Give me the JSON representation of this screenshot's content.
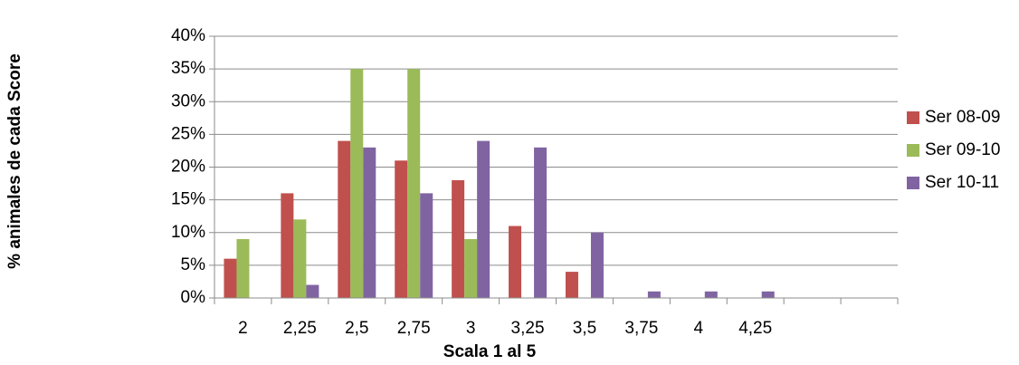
{
  "chart_data": {
    "type": "bar",
    "title": "",
    "xlabel": "Scala 1 al 5",
    "ylabel": "% animales de cada Score",
    "categories": [
      "2",
      "2,25",
      "2,5",
      "2,75",
      "3",
      "3,25",
      "3,5",
      "3,75",
      "4",
      "4,25",
      "",
      ""
    ],
    "y_ticks": [
      "0%",
      "5%",
      "10%",
      "15%",
      "20%",
      "25%",
      "30%",
      "35%",
      "40%"
    ],
    "ylim": [
      0,
      40
    ],
    "grid": true,
    "legend_position": "right",
    "series": [
      {
        "name": "Ser 08-09",
        "color": "#C0504D",
        "values": [
          6,
          16,
          24,
          21,
          18,
          11,
          4,
          0,
          0,
          0,
          0,
          0
        ]
      },
      {
        "name": "Ser 09-10",
        "color": "#9BBB59",
        "values": [
          9,
          12,
          35,
          35,
          9,
          0,
          0,
          0,
          0,
          0,
          0,
          0
        ]
      },
      {
        "name": "Ser 10-11",
        "color": "#8064A2",
        "values": [
          0,
          2,
          23,
          16,
          24,
          23,
          10,
          1,
          1,
          1,
          0,
          0
        ]
      }
    ]
  }
}
